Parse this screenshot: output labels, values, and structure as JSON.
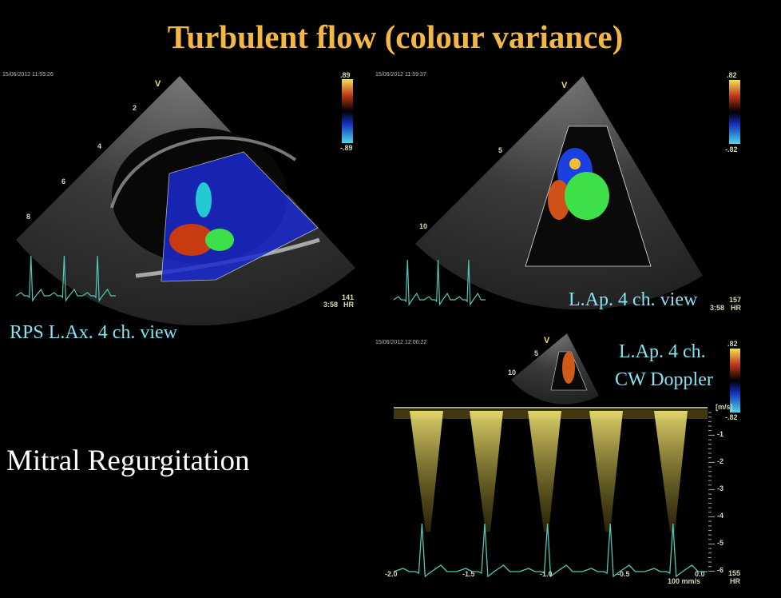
{
  "slide": {
    "title": "Turbulent flow (colour variance)",
    "main_caption": "Mitral Regurgitation"
  },
  "panels": [
    {
      "timestamp": "15/06/2012 11:55:26",
      "caption": "RPS L.Ax. 4 ch. view",
      "scale_max": ".89",
      "scale_min": "-.89",
      "marker": "V",
      "depth_labels": [
        "2",
        "4",
        "6",
        "8"
      ],
      "hr": "141",
      "time": "3:58",
      "hr_label": "HR"
    },
    {
      "timestamp": "15/06/2012 11:59:37",
      "caption": "L.Ap. 4 ch. view",
      "scale_max": ".82",
      "scale_min": "-.82",
      "marker": "V",
      "depth_labels": [
        "5",
        "10"
      ],
      "hr": "157",
      "time": "3:58",
      "hr_label": "HR"
    },
    {
      "timestamp": "15/06/2012 12:00:22",
      "caption_line1": "L.Ap. 4 ch.",
      "caption_line2": "CW Doppler",
      "scale_max": ".82",
      "scale_min": "-.82",
      "marker": "V",
      "depth_labels": [
        "5",
        "10"
      ],
      "unit": "[m/s]",
      "velocity_ticks": [
        "-1",
        "-2",
        "-3",
        "-4",
        "-5",
        "-6"
      ],
      "time_ticks": [
        "-2.0",
        "-1.5",
        "-1.0",
        "-0.5",
        "0.0"
      ],
      "sweep_speed": "100 mm/s",
      "hr": "155",
      "hr_label": "HR"
    }
  ],
  "colors": {
    "title": "#f2b744",
    "caption": "#86e3f2",
    "ecg": "#4fc9b8",
    "doppler": "#d8c64a"
  }
}
